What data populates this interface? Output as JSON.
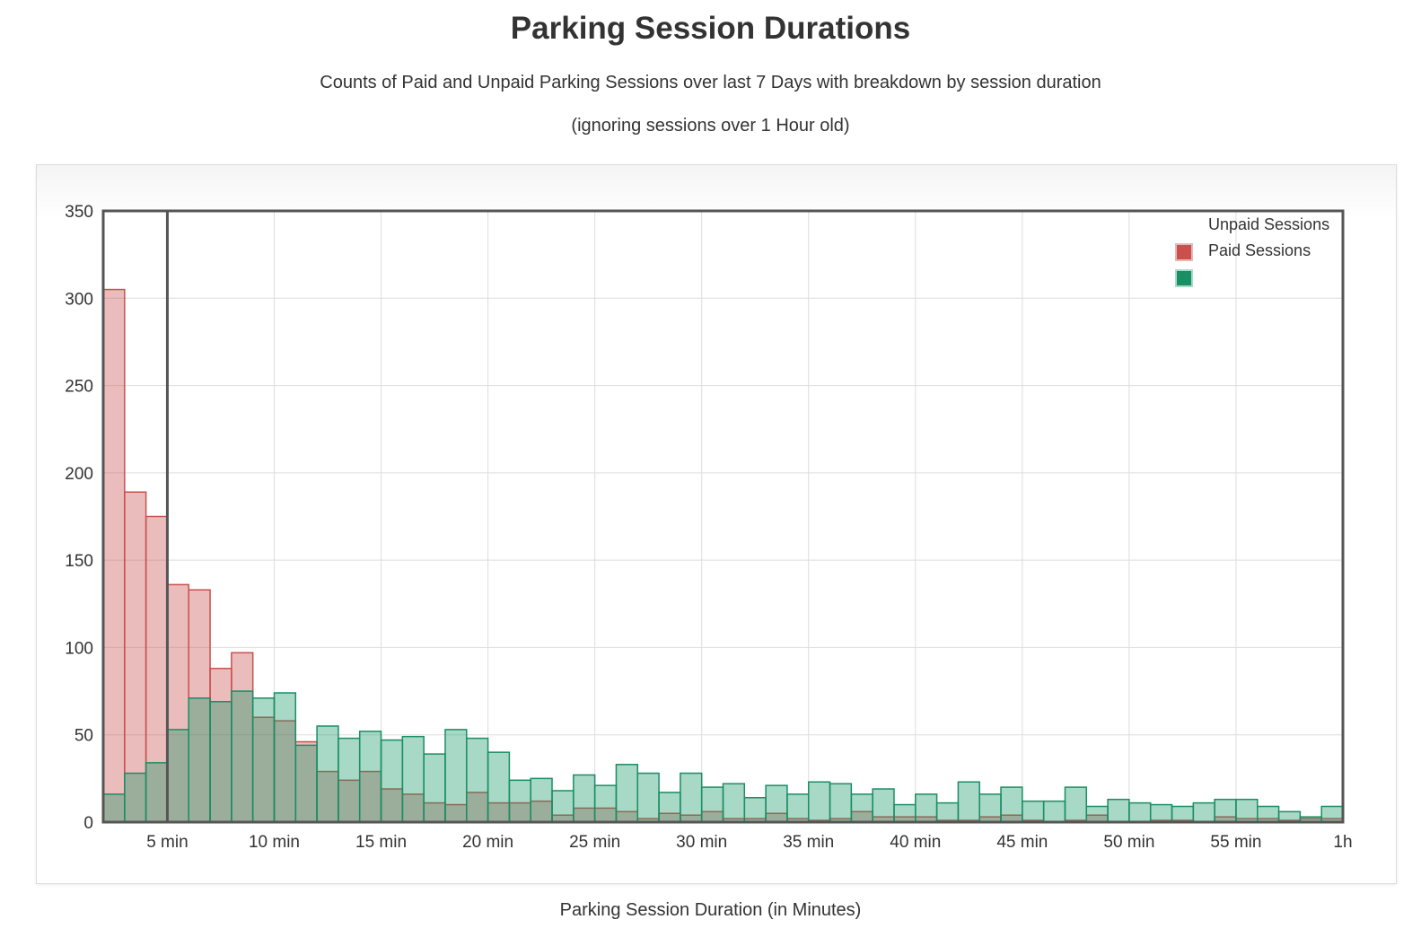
{
  "chart_data": {
    "type": "bar",
    "title": "Parking Session Durations",
    "subtitle": "Counts of Paid and Unpaid Parking Sessions over last 7 Days with breakdown by session duration",
    "subtitle2": "(ignoring sessions over 1 Hour old)",
    "xlabel": "Parking Session Duration (in Minutes)",
    "ylabel": "",
    "ylim": [
      0,
      350
    ],
    "xlim": [
      2,
      60
    ],
    "y_ticks": [
      0,
      50,
      100,
      150,
      200,
      250,
      300,
      350
    ],
    "x_ticks": [
      {
        "value": 5,
        "label": "5 min"
      },
      {
        "value": 10,
        "label": "10 min"
      },
      {
        "value": 15,
        "label": "15 min"
      },
      {
        "value": 20,
        "label": "20 min"
      },
      {
        "value": 25,
        "label": "25 min"
      },
      {
        "value": 30,
        "label": "30 min"
      },
      {
        "value": 35,
        "label": "35 min"
      },
      {
        "value": 40,
        "label": "40 min"
      },
      {
        "value": 45,
        "label": "45 min"
      },
      {
        "value": 50,
        "label": "50 min"
      },
      {
        "value": 55,
        "label": "55 min"
      },
      {
        "value": 60,
        "label": "1h"
      }
    ],
    "reference_line_x": 5,
    "grid": true,
    "legend_position": "top-right",
    "bin_start_minutes": [
      2,
      3,
      4,
      5,
      6,
      7,
      8,
      9,
      10,
      11,
      12,
      13,
      14,
      15,
      16,
      17,
      18,
      19,
      20,
      21,
      22,
      23,
      24,
      25,
      26,
      27,
      28,
      29,
      30,
      31,
      32,
      33,
      34,
      35,
      36,
      37,
      38,
      39,
      40,
      41,
      42,
      43,
      44,
      45,
      46,
      47,
      48,
      49,
      50,
      51,
      52,
      53,
      54,
      55,
      56,
      57,
      58,
      59
    ],
    "series": [
      {
        "name": "Unpaid Sessions",
        "color": "#c9504d",
        "fill": "rgba(201,80,77,0.38)",
        "values": [
          305,
          189,
          175,
          136,
          133,
          88,
          97,
          60,
          58,
          46,
          29,
          24,
          29,
          19,
          16,
          11,
          10,
          17,
          11,
          11,
          12,
          4,
          8,
          8,
          6,
          2,
          5,
          4,
          6,
          2,
          2,
          5,
          2,
          1,
          2,
          6,
          3,
          3,
          3,
          1,
          1,
          3,
          4,
          1,
          0,
          1,
          4,
          0,
          0,
          1,
          1,
          0,
          3,
          2,
          2,
          1,
          2,
          2
        ]
      },
      {
        "name": "Paid Sessions",
        "color": "#1a8e64",
        "fill": "rgba(26,153,106,0.38)",
        "values": [
          16,
          28,
          34,
          53,
          71,
          69,
          75,
          71,
          74,
          44,
          55,
          48,
          52,
          47,
          49,
          39,
          53,
          48,
          40,
          24,
          25,
          18,
          27,
          21,
          33,
          28,
          17,
          28,
          20,
          22,
          14,
          21,
          16,
          23,
          22,
          16,
          19,
          10,
          16,
          11,
          23,
          16,
          20,
          12,
          12,
          20,
          9,
          13,
          11,
          10,
          9,
          11,
          13,
          13,
          9,
          6,
          3,
          9
        ]
      }
    ]
  }
}
